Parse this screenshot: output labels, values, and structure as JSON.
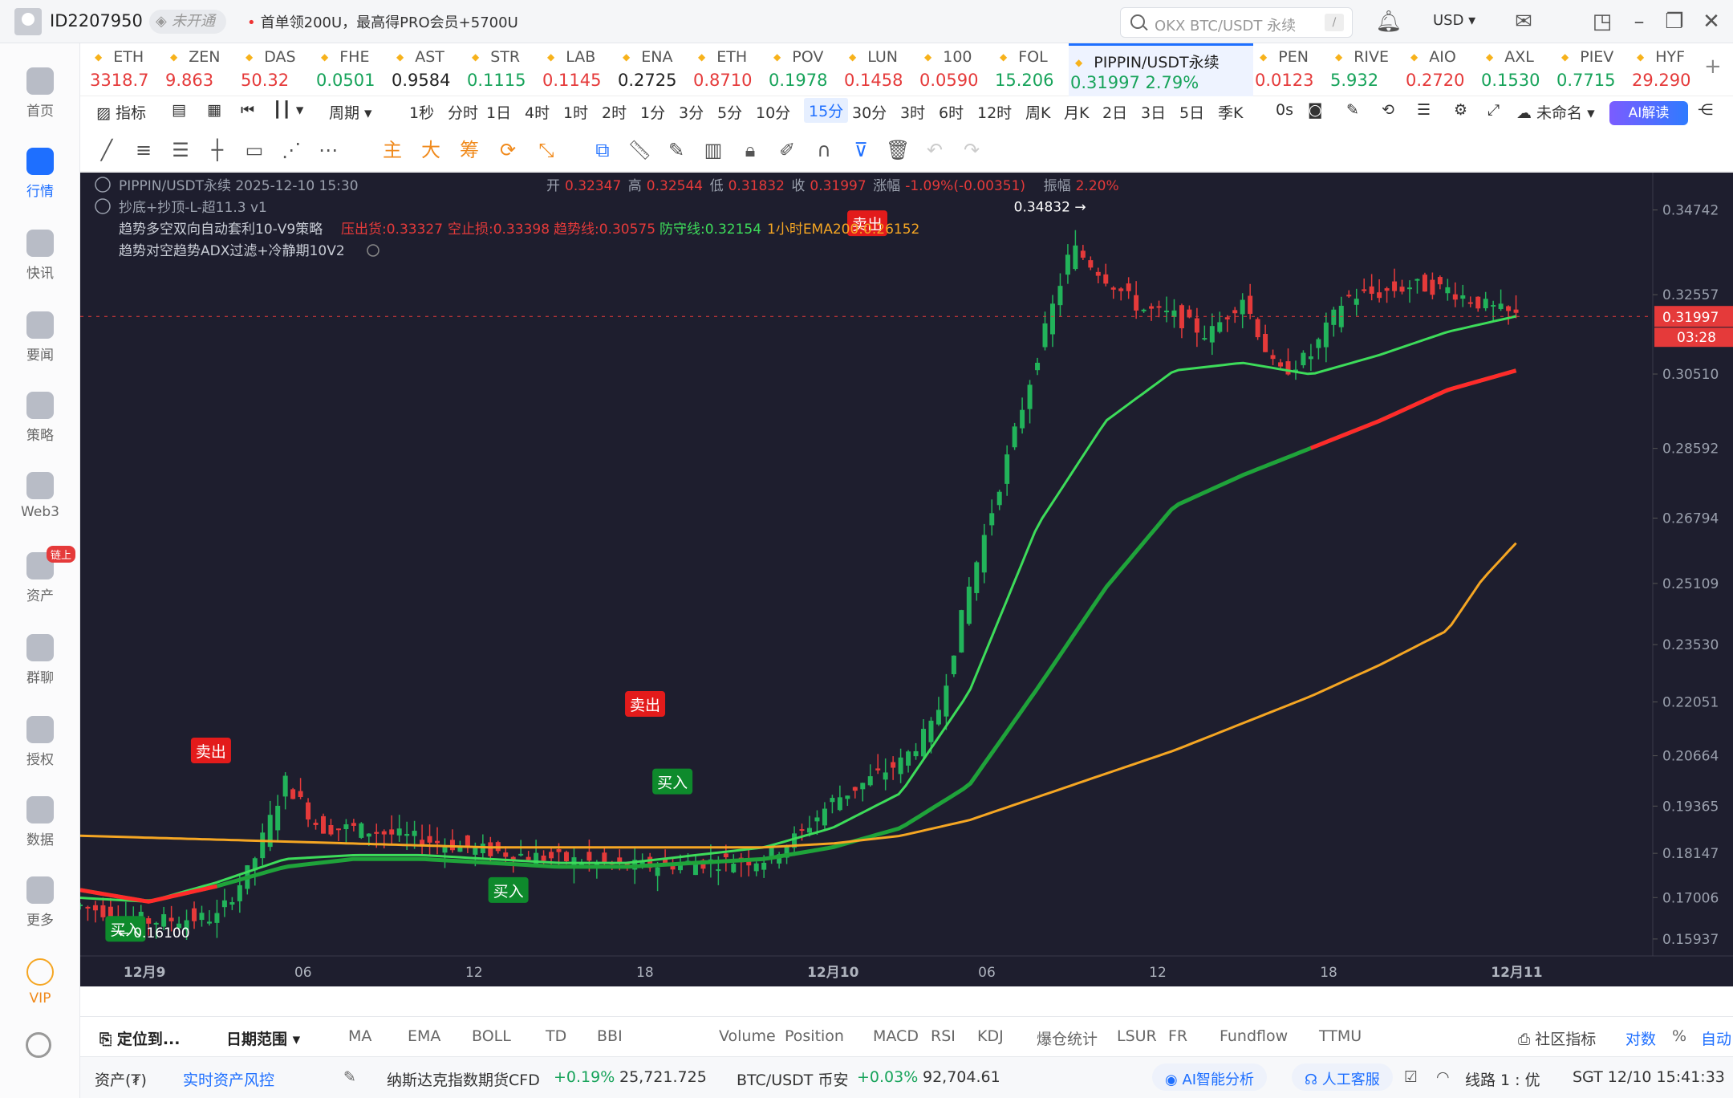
{
  "topbar": {
    "user_id": "ID2207950",
    "status": "未开通",
    "promo": "首单领200U，最高得PRO会员+5700U",
    "search_placeholder": "OKX BTC/USDT 永续",
    "search_shortcut": "/",
    "currency": "USD ▾",
    "icons": [
      "bell-icon",
      "mail-icon",
      "layout-icon",
      "minimize-icon",
      "restore-icon",
      "close-icon"
    ]
  },
  "nav": [
    {
      "label": "首页",
      "icon": "home-icon"
    },
    {
      "label": "行情",
      "icon": "market-icon",
      "active": true
    },
    {
      "label": "快讯",
      "icon": "news-flash-icon"
    },
    {
      "label": "要闻",
      "icon": "headline-icon"
    },
    {
      "label": "策略",
      "icon": "strategy-icon"
    },
    {
      "label": "Web3",
      "icon": "web3-icon"
    },
    {
      "label": "资产",
      "icon": "wallet-icon",
      "badge": "链上"
    },
    {
      "label": "群聊",
      "icon": "chat-icon"
    },
    {
      "label": "授权",
      "icon": "key-icon"
    },
    {
      "label": "数据",
      "icon": "data-icon"
    },
    {
      "label": "更多",
      "icon": "more-icon"
    },
    {
      "label": "VIP",
      "icon": "vip-icon"
    }
  ],
  "tickers": [
    {
      "name": "ETH",
      "price": "3318.7",
      "dir": "dn"
    },
    {
      "name": "ZEN",
      "price": "9.863",
      "dir": "dn"
    },
    {
      "name": "DAS",
      "price": "50.32",
      "dir": "dn"
    },
    {
      "name": "FHE",
      "price": "0.0501",
      "dir": "up"
    },
    {
      "name": "AST",
      "price": "0.9584",
      "dir": "ne"
    },
    {
      "name": "STR",
      "price": "0.1115",
      "dir": "up"
    },
    {
      "name": "LAB",
      "price": "0.1145",
      "dir": "dn"
    },
    {
      "name": "ENA",
      "price": "0.2725",
      "dir": "ne"
    },
    {
      "name": "ETH",
      "price": "0.8710",
      "dir": "dn"
    },
    {
      "name": "POV",
      "price": "0.1978",
      "dir": "up"
    },
    {
      "name": "LUN",
      "price": "0.1458",
      "dir": "dn"
    },
    {
      "name": "100",
      "price": "0.0590",
      "dir": "dn"
    },
    {
      "name": "FOL",
      "price": "15.206",
      "dir": "up"
    },
    {
      "name": "PIPPIN/USDT永续",
      "price": "0.31997  2.79%",
      "dir": "up",
      "active": true
    },
    {
      "name": "PEN",
      "price": "0.0123",
      "dir": "dn"
    },
    {
      "name": "RIVE",
      "price": "5.932",
      "dir": "up"
    },
    {
      "name": "AIO",
      "price": "0.2720",
      "dir": "dn"
    },
    {
      "name": "AXL",
      "price": "0.1530",
      "dir": "up"
    },
    {
      "name": "PIEV",
      "price": "0.7715",
      "dir": "up"
    },
    {
      "name": "HYF",
      "price": "29.290",
      "dir": "dn"
    }
  ],
  "toolbar1": {
    "indicator": "指标",
    "period_label": "周期 ▾",
    "intervals": [
      "1秒",
      "分时",
      "1日",
      "4时",
      "1时",
      "2时",
      "1分",
      "3分",
      "5分",
      "10分",
      "15分",
      "30分",
      "3时",
      "6时",
      "12时",
      "周K",
      "月K",
      "2日",
      "3日",
      "5日",
      "季K"
    ],
    "selected_interval": "15分",
    "replay": "0s",
    "layout_name": "未命名",
    "ai_button": "AI解读"
  },
  "toolbar2": {
    "tools": [
      "trendline-icon",
      "parallel-icon",
      "hline-icon",
      "ray-icon",
      "rect-icon",
      "fib-icon",
      "more-dots-icon"
    ],
    "text_tools": [
      "主",
      "大",
      "筹"
    ],
    "tools_right": [
      "sync-icon",
      "measure-icon",
      "copy-chart-icon",
      "ruler-icon",
      "pencil-icon",
      "bars-pattern-icon",
      "lock-icon",
      "notes-icon",
      "magnet-icon",
      "filter-icon",
      "trash-icon",
      "undo-icon",
      "redo-icon"
    ]
  },
  "chart_info": {
    "line1_prefix": "PIPPIN/USDT永续  2025-12-10 15:30",
    "open_label": "开",
    "open": "0.32347",
    "high_label": "高",
    "high": "0.32544",
    "low_label": "低",
    "low": "0.31832",
    "close_label": "收",
    "close": "0.31997",
    "change_label": "涨幅",
    "change": "-1.09%(-0.00351)",
    "amp_label": "振幅",
    "amp": "2.20%",
    "line2": "抄底+抄顶-L-超11.3 v1",
    "line3_name": "趋势多空双向自动套利10-V9策略",
    "pressure": "压出货:0.33327",
    "stop": "空止损:0.33398",
    "trend": "趋势线:0.30575",
    "defense": "防守线:0.32154",
    "ema": "1小时EMA200:0.26152",
    "line4": "趋势对空趋势ADX过滤+冷静期10V2"
  },
  "chart_data": {
    "type": "line",
    "title": "PIPPIN/USDT永续 15分",
    "y_ticks": [
      "0.34742",
      "0.32557",
      "0.30510",
      "0.28592",
      "0.26794",
      "0.25109",
      "0.23530",
      "0.22051",
      "0.20664",
      "0.19365",
      "0.18147",
      "0.17006",
      "0.15937"
    ],
    "x_ticks": [
      "12月9",
      "06",
      "12",
      "18",
      "12月10",
      "06",
      "12",
      "18",
      "12月11"
    ],
    "current_price": "0.31997",
    "countdown": "03:28",
    "high_marker": "0.34832",
    "low_marker": "0.16100",
    "price": {
      "name": "price",
      "x": [
        0,
        2,
        4,
        5,
        6,
        7,
        8,
        10,
        12,
        14,
        16,
        18,
        20,
        21,
        22,
        23,
        24,
        25,
        26,
        27,
        28,
        29,
        30,
        31,
        32,
        33,
        34,
        35,
        36,
        37,
        38,
        39,
        40,
        41,
        42
      ],
      "values": [
        0.168,
        0.164,
        0.165,
        0.178,
        0.2,
        0.188,
        0.188,
        0.185,
        0.182,
        0.18,
        0.178,
        0.179,
        0.18,
        0.186,
        0.195,
        0.2,
        0.205,
        0.215,
        0.25,
        0.28,
        0.31,
        0.338,
        0.33,
        0.322,
        0.32,
        0.315,
        0.325,
        0.305,
        0.31,
        0.325,
        0.326,
        0.328,
        0.327,
        0.323,
        0.32
      ]
    },
    "ema_green": {
      "x": [
        0,
        2,
        4,
        6,
        8,
        10,
        12,
        14,
        16,
        18,
        20,
        22,
        24,
        26,
        28,
        30,
        32,
        34,
        36,
        38,
        40,
        42
      ],
      "values": [
        0.17,
        0.169,
        0.174,
        0.18,
        0.181,
        0.181,
        0.18,
        0.179,
        0.179,
        0.181,
        0.183,
        0.188,
        0.197,
        0.223,
        0.266,
        0.293,
        0.306,
        0.308,
        0.305,
        0.31,
        0.316,
        0.32
      ]
    },
    "trend_line": {
      "x": [
        0,
        2,
        4,
        6,
        8,
        10,
        12,
        14,
        16,
        18,
        20,
        22,
        24,
        26,
        28,
        30,
        32,
        34,
        36,
        38,
        40,
        42
      ],
      "values": [
        0.172,
        0.169,
        0.173,
        0.178,
        0.18,
        0.18,
        0.179,
        0.178,
        0.178,
        0.179,
        0.18,
        0.183,
        0.188,
        0.199,
        0.224,
        0.25,
        0.271,
        0.279,
        0.286,
        0.293,
        0.301,
        0.306
      ]
    },
    "ema200": {
      "x": [
        0,
        4,
        8,
        12,
        16,
        20,
        22,
        24,
        26,
        28,
        30,
        32,
        34,
        36,
        38,
        40,
        41,
        42
      ],
      "values": [
        0.186,
        0.185,
        0.184,
        0.183,
        0.183,
        0.183,
        0.184,
        0.186,
        0.19,
        0.196,
        0.202,
        0.208,
        0.215,
        0.222,
        0.23,
        0.239,
        0.252,
        0.2615
      ]
    },
    "signals": [
      {
        "label": "买入",
        "x": 1.3,
        "y": 0.162,
        "kind": "buy"
      },
      {
        "label": "卖出",
        "x": 3.8,
        "y": 0.208,
        "kind": "sell"
      },
      {
        "label": "买入",
        "x": 12.5,
        "y": 0.172,
        "kind": "buy"
      },
      {
        "label": "卖出",
        "x": 16.5,
        "y": 0.22,
        "kind": "sell"
      },
      {
        "label": "买入",
        "x": 17.3,
        "y": 0.2,
        "kind": "buy"
      },
      {
        "label": "卖出",
        "x": 23.0,
        "y": 0.344,
        "kind": "sell"
      }
    ],
    "ylim": [
      0.155,
      0.355
    ],
    "xlim": [
      0,
      46
    ]
  },
  "bottom_tabs": {
    "locate": "定位到...",
    "range": "日期范围",
    "indicators": [
      "MA",
      "EMA",
      "BOLL",
      "TD",
      "BBI"
    ],
    "sub_indicators": [
      "Volume",
      "Position",
      "MACD",
      "RSI",
      "KDJ",
      "爆仓统计",
      "LSUR",
      "FR",
      "Fundflow",
      "TTMU"
    ],
    "community": "社区指标",
    "log": "对数",
    "pct": "%",
    "auto": "自动"
  },
  "statusbar": {
    "assets": "资产(₮)",
    "risk": "实时资产风控",
    "nasdaq_name": "纳斯达克指数期货CFD",
    "nasdaq_change": "+0.19%",
    "nasdaq_value": "25,721.725",
    "btc_name": "BTC/USDT 币安",
    "btc_change": "+0.03%",
    "btc_value": "92,704.61",
    "ai_analysis": "AI智能分析",
    "support": "人工客服",
    "line": "线路 1 : 优",
    "time": "SGT 12/10 15:41:33"
  },
  "colors": {
    "bg": "#1e1e2e",
    "up": "#22b35a",
    "down": "#e53a3a",
    "ema200": "#f5a623",
    "accent": "#1e6fff"
  }
}
